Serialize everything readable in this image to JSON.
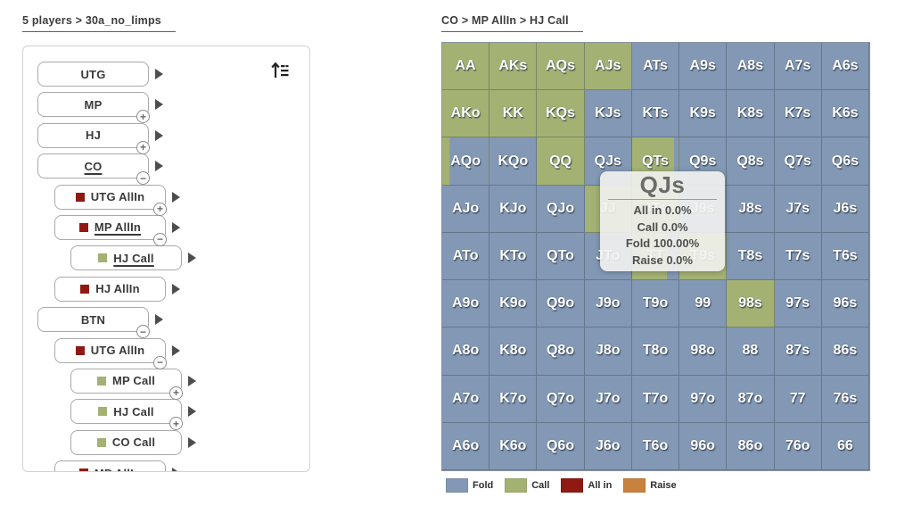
{
  "colors": {
    "fold": "#8298b4",
    "call": "#a3b173",
    "allin": "#8f1a13",
    "raise": "#c8823e"
  },
  "left": {
    "breadcrumb": "5 players > 30a_no_limps",
    "tree": [
      {
        "label": "UTG",
        "level": 0,
        "badge": null,
        "square": null,
        "selected": false
      },
      {
        "label": "MP",
        "level": 0,
        "badge": "+",
        "square": null,
        "selected": false
      },
      {
        "label": "HJ",
        "level": 0,
        "badge": "+",
        "square": null,
        "selected": false
      },
      {
        "label": "CO",
        "level": 0,
        "badge": "-",
        "square": null,
        "selected": true
      },
      {
        "label": "UTG AllIn",
        "level": 1,
        "badge": "+",
        "square": "allin",
        "selected": false
      },
      {
        "label": "MP AllIn",
        "level": 1,
        "badge": "-",
        "square": "allin",
        "selected": true
      },
      {
        "label": "HJ Call",
        "level": 2,
        "badge": null,
        "square": "call",
        "selected": true
      },
      {
        "label": "HJ AllIn",
        "level": 1,
        "badge": null,
        "square": "allin",
        "selected": false
      },
      {
        "label": "BTN",
        "level": 0,
        "badge": "-",
        "square": null,
        "selected": false
      },
      {
        "label": "UTG AllIn",
        "level": 1,
        "badge": "-",
        "square": "allin",
        "selected": false
      },
      {
        "label": "MP Call",
        "level": 2,
        "badge": "+",
        "square": "call",
        "selected": false
      },
      {
        "label": "HJ Call",
        "level": 2,
        "badge": "+",
        "square": "call",
        "selected": false
      },
      {
        "label": "CO Call",
        "level": 2,
        "badge": null,
        "square": "call",
        "selected": false
      },
      {
        "label": "MP AllIn",
        "level": 1,
        "badge": "-",
        "square": "allin",
        "selected": false
      }
    ]
  },
  "right": {
    "breadcrumb": "CO > MP AllIn > HJ Call",
    "grid": {
      "rows": [
        [
          [
            "AA",
            1
          ],
          [
            "AKs",
            1
          ],
          [
            "AQs",
            1
          ],
          [
            "AJs",
            1
          ],
          [
            "ATs",
            0
          ],
          [
            "A9s",
            0
          ],
          [
            "A8s",
            0
          ],
          [
            "A7s",
            0
          ],
          [
            "A6s",
            0
          ]
        ],
        [
          [
            "AKo",
            1
          ],
          [
            "KK",
            1
          ],
          [
            "KQs",
            1
          ],
          [
            "KJs",
            0
          ],
          [
            "KTs",
            0
          ],
          [
            "K9s",
            0
          ],
          [
            "K8s",
            0
          ],
          [
            "K7s",
            0
          ],
          [
            "K6s",
            0
          ]
        ],
        [
          [
            "AQo",
            0.16
          ],
          [
            "KQo",
            0
          ],
          [
            "QQ",
            1
          ],
          [
            "QJs",
            0
          ],
          [
            "QTs",
            0.9
          ],
          [
            "Q9s",
            0
          ],
          [
            "Q8s",
            0
          ],
          [
            "Q7s",
            0
          ],
          [
            "Q6s",
            0
          ]
        ],
        [
          [
            "AJo",
            0
          ],
          [
            "KJo",
            0
          ],
          [
            "QJo",
            0
          ],
          [
            "JJ",
            1
          ],
          [
            "JTs",
            1
          ],
          [
            "J9s",
            0
          ],
          [
            "J8s",
            0
          ],
          [
            "J7s",
            0
          ],
          [
            "J6s",
            0
          ]
        ],
        [
          [
            "ATo",
            0
          ],
          [
            "KTo",
            0
          ],
          [
            "QTo",
            0
          ],
          [
            "JTo",
            0
          ],
          [
            "TT",
            0.75
          ],
          [
            "T9s",
            1
          ],
          [
            "T8s",
            0
          ],
          [
            "T7s",
            0
          ],
          [
            "T6s",
            0
          ]
        ],
        [
          [
            "A9o",
            0
          ],
          [
            "K9o",
            0
          ],
          [
            "Q9o",
            0
          ],
          [
            "J9o",
            0
          ],
          [
            "T9o",
            0
          ],
          [
            "99",
            0
          ],
          [
            "98s",
            1
          ],
          [
            "97s",
            0
          ],
          [
            "96s",
            0
          ]
        ],
        [
          [
            "A8o",
            0
          ],
          [
            "K8o",
            0
          ],
          [
            "Q8o",
            0
          ],
          [
            "J8o",
            0
          ],
          [
            "T8o",
            0
          ],
          [
            "98o",
            0
          ],
          [
            "88",
            0
          ],
          [
            "87s",
            0
          ],
          [
            "86s",
            0
          ]
        ],
        [
          [
            "A7o",
            0
          ],
          [
            "K7o",
            0
          ],
          [
            "Q7o",
            0
          ],
          [
            "J7o",
            0
          ],
          [
            "T7o",
            0
          ],
          [
            "97o",
            0
          ],
          [
            "87o",
            0
          ],
          [
            "77",
            0
          ],
          [
            "76s",
            0
          ]
        ],
        [
          [
            "A6o",
            0
          ],
          [
            "K6o",
            0
          ],
          [
            "Q6o",
            0
          ],
          [
            "J6o",
            0
          ],
          [
            "T6o",
            0
          ],
          [
            "96o",
            0
          ],
          [
            "86o",
            0
          ],
          [
            "76o",
            0
          ],
          [
            "66",
            0
          ]
        ]
      ]
    },
    "tooltip": {
      "title": "QJs",
      "lines": [
        "All in 0.0%",
        "Call 0.0%",
        "Fold 100.00%",
        "Raise 0.0%"
      ]
    },
    "legend": [
      {
        "label": "Fold",
        "color": "#8298b4"
      },
      {
        "label": "Call",
        "color": "#a3b173"
      },
      {
        "label": "All in",
        "color": "#8f1a13"
      },
      {
        "label": "Raise",
        "color": "#c8823e"
      }
    ]
  }
}
